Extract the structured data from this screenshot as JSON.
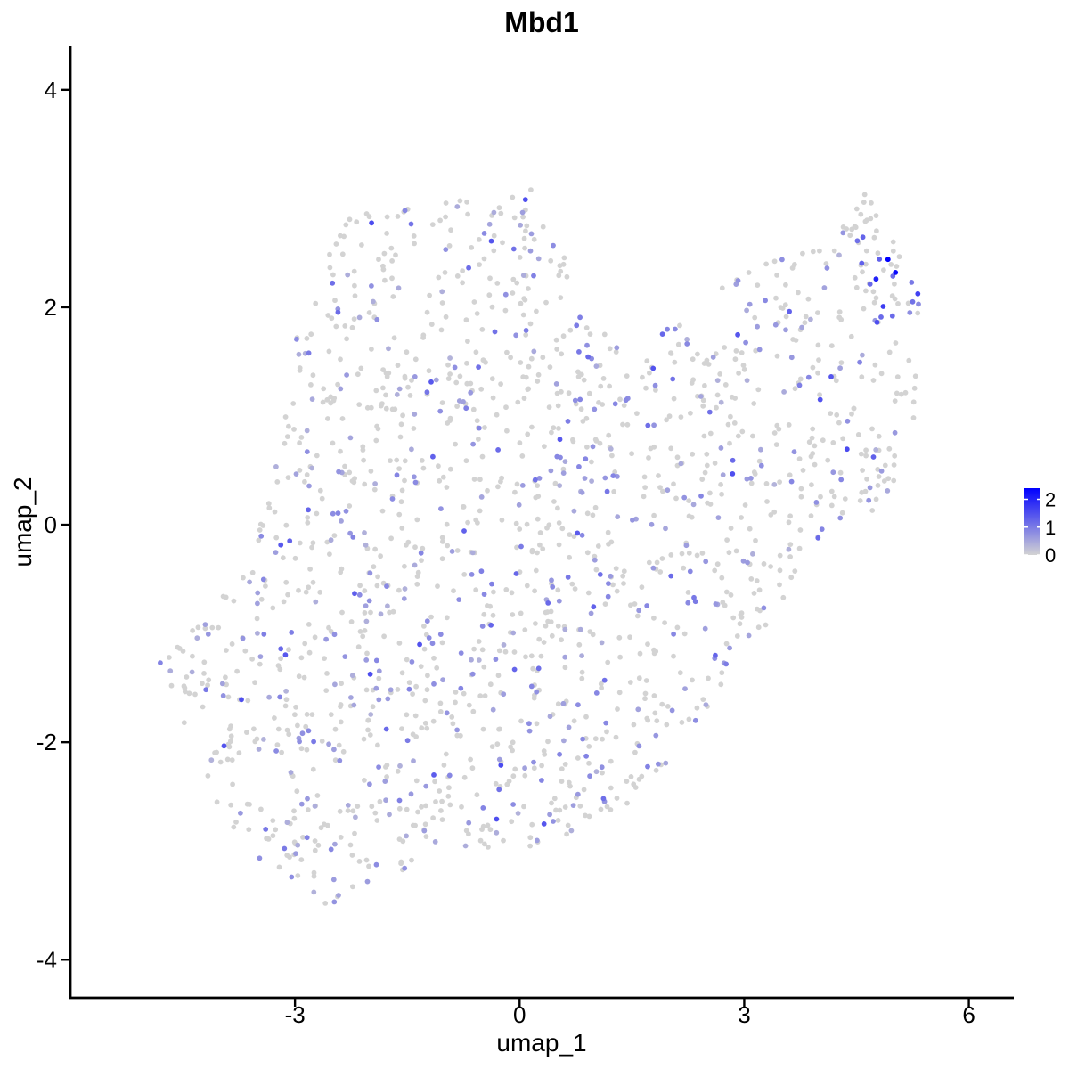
{
  "chart_data": {
    "type": "scatter",
    "title": "Mbd1",
    "xlabel": "umap_1",
    "ylabel": "umap_2",
    "xlim": [
      -6.0,
      6.6
    ],
    "ylim": [
      -4.35,
      4.4
    ],
    "x_ticks": [
      -3,
      0,
      3,
      6
    ],
    "y_ticks": [
      -4,
      -2,
      0,
      2,
      4
    ],
    "x_tick_labels": [
      "-3",
      "0",
      "3",
      "6"
    ],
    "y_tick_labels": [
      "-4",
      "-2",
      "0",
      "2",
      "4"
    ],
    "grid": false,
    "legend": {
      "placement": "right",
      "kind": "colorbar",
      "labels": [
        "2",
        "1",
        "0"
      ],
      "values": [
        2,
        1,
        0
      ],
      "range": [
        0,
        2.4
      ],
      "colors": {
        "low": "#d3d3d3",
        "high": "#0000ff"
      }
    },
    "color_scale": {
      "low": "#d3d3d3",
      "high": "#0000ff",
      "min": 0,
      "max": 2.4
    },
    "cluster_outline": [
      [
        -4.8,
        -1.25
      ],
      [
        -4.4,
        -1.6
      ],
      [
        -4.2,
        -2.3
      ],
      [
        -3.8,
        -2.95
      ],
      [
        -3.2,
        -3.2
      ],
      [
        -2.6,
        -3.5
      ],
      [
        -2.0,
        -3.4
      ],
      [
        -1.4,
        -3.1
      ],
      [
        -0.8,
        -2.95
      ],
      [
        0.0,
        -3.0
      ],
      [
        0.7,
        -2.85
      ],
      [
        1.6,
        -2.5
      ],
      [
        2.4,
        -1.8
      ],
      [
        3.1,
        -1.15
      ],
      [
        3.6,
        -0.6
      ],
      [
        4.0,
        -0.2
      ],
      [
        4.5,
        0.0
      ],
      [
        5.0,
        0.2
      ],
      [
        5.25,
        0.9
      ],
      [
        5.35,
        1.6
      ],
      [
        5.35,
        2.2
      ],
      [
        5.05,
        2.55
      ],
      [
        4.6,
        3.1
      ],
      [
        4.2,
        2.6
      ],
      [
        3.4,
        2.45
      ],
      [
        2.7,
        2.2
      ],
      [
        2.0,
        1.85
      ],
      [
        1.5,
        1.55
      ],
      [
        1.0,
        1.85
      ],
      [
        0.6,
        2.6
      ],
      [
        0.0,
        3.05
      ],
      [
        -0.8,
        3.05
      ],
      [
        -1.6,
        2.9
      ],
      [
        -2.3,
        2.85
      ],
      [
        -2.7,
        2.3
      ],
      [
        -3.0,
        1.7
      ],
      [
        -3.2,
        0.8
      ],
      [
        -3.4,
        0.1
      ],
      [
        -3.7,
        -0.4
      ],
      [
        -4.2,
        -0.8
      ]
    ],
    "point_count": 1700,
    "seed": 11,
    "expr_distribution": {
      "zero_fraction": 0.72,
      "low_max": 0.9,
      "mid_max": 1.55
    },
    "expression_hotspot": {
      "center": [
        4.9,
        2.35
      ],
      "radius": 0.6,
      "boost": 0.9
    },
    "notable_points": [
      {
        "x": 4.92,
        "y": 2.44,
        "expr": 2.4
      },
      {
        "x": 5.02,
        "y": 2.32,
        "expr": 2.3
      },
      {
        "x": 4.76,
        "y": 2.26,
        "expr": 2.0
      },
      {
        "x": 4.98,
        "y": 1.92,
        "expr": 1.2
      },
      {
        "x": 5.25,
        "y": 2.05,
        "expr": 1.1
      },
      {
        "x": 0.38,
        "y": -0.72,
        "expr": 1.2
      },
      {
        "x": -1.78,
        "y": -1.88,
        "expr": 1.2
      },
      {
        "x": -0.55,
        "y": 1.45,
        "expr": 1.1
      },
      {
        "x": 0.02,
        "y": -0.2,
        "expr": 1.0
      },
      {
        "x": 1.25,
        "y": 0.45,
        "expr": 0.9
      },
      {
        "x": -4.8,
        "y": -1.27,
        "expr": 0.9
      },
      {
        "x": -4.68,
        "y": -1.22,
        "expr": 0.0
      },
      {
        "x": -4.65,
        "y": -1.48,
        "expr": 0.0
      },
      {
        "x": -4.48,
        "y": -1.82,
        "expr": 0.0
      },
      {
        "x": 2.35,
        "y": -1.8,
        "expr": 0.8
      },
      {
        "x": 0.15,
        "y": 3.08,
        "expr": 0.0
      }
    ]
  }
}
